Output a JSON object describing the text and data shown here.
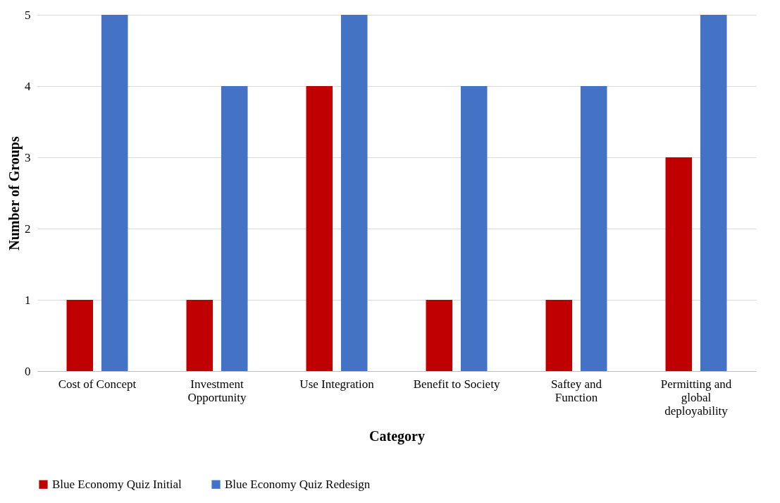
{
  "chart_data": {
    "type": "bar",
    "xlabel": "Category",
    "ylabel": "Number of Groups",
    "categories": [
      "Cost of Concept",
      "Investment Opportunity",
      "Use Integration",
      "Benefit to Society",
      "Saftey and Function",
      "Permitting and global deployability"
    ],
    "series": [
      {
        "name": "Blue Economy Quiz Initial",
        "color": "#c00000",
        "values": [
          1,
          1,
          4,
          1,
          1,
          3
        ]
      },
      {
        "name": "Blue Economy Quiz Redesign",
        "color": "#4472c4",
        "values": [
          5,
          4,
          5,
          4,
          4,
          5
        ]
      }
    ],
    "ylim": [
      0,
      5
    ],
    "yticks": [
      0,
      1,
      2,
      3,
      4,
      5
    ],
    "grid": "y",
    "legend": "bottom"
  }
}
